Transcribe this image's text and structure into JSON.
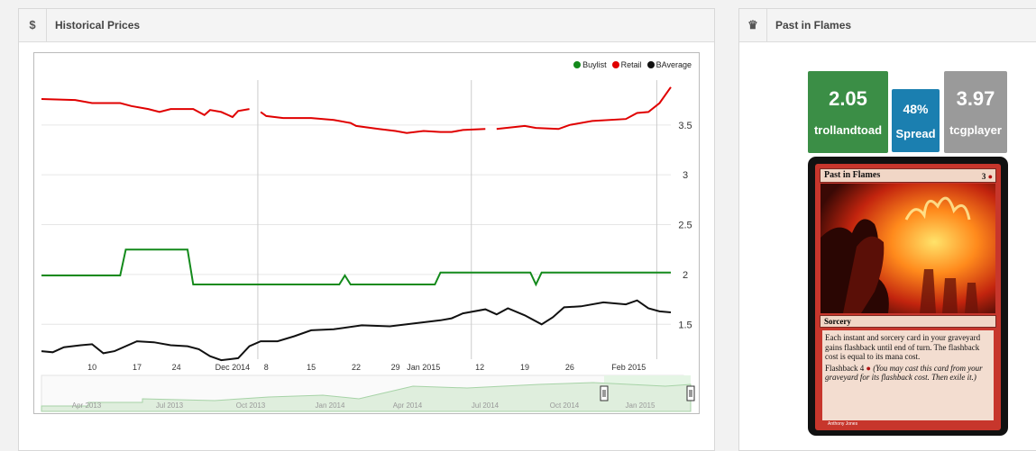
{
  "left_panel": {
    "icon": "$",
    "title": "Historical Prices"
  },
  "right_panel": {
    "icon": "♛",
    "title": "Past in Flames"
  },
  "legend": [
    {
      "label": "Buylist",
      "color": "#138a1b"
    },
    {
      "label": "Retail",
      "color": "#e00000"
    },
    {
      "label": "BAverage",
      "color": "#111111"
    }
  ],
  "chart_data": {
    "type": "line",
    "y_ticks": [
      "3.5",
      "3",
      "2.5",
      "2",
      "1.5"
    ],
    "ylim": [
      1.15,
      3.95
    ],
    "x_ticks": [
      "10",
      "17",
      "24",
      "Dec 2014",
      "8",
      "15",
      "22",
      "29",
      "Jan 2015",
      "12",
      "19",
      "26",
      "Feb 2015"
    ],
    "navigator_ticks": [
      "Apr 2013",
      "Jul 2013",
      "Oct 2013",
      "Jan 2014",
      "Apr 2014",
      "Jul 2014",
      "Oct 2014",
      "Jan 2015"
    ],
    "series": [
      {
        "name": "Buylist",
        "color": "#138a1b",
        "segments": [
          [
            [
              0,
              1.99
            ],
            [
              14,
              1.99
            ],
            [
              15,
              2.25
            ],
            [
              26,
              2.25
            ],
            [
              27,
              1.9
            ],
            [
              53,
              1.9
            ],
            [
              54,
              1.99
            ],
            [
              55,
              1.9
            ],
            [
              70,
              1.9
            ],
            [
              71,
              2.02
            ],
            [
              87,
              2.02
            ],
            [
              88,
              1.9
            ],
            [
              89,
              2.02
            ],
            [
              112,
              2.02
            ]
          ]
        ]
      },
      {
        "name": "Retail",
        "color": "#e00000",
        "segments": [
          [
            [
              0,
              3.76
            ],
            [
              6,
              3.75
            ],
            [
              9,
              3.72
            ],
            [
              14,
              3.72
            ],
            [
              16,
              3.69
            ],
            [
              19,
              3.66
            ],
            [
              21,
              3.63
            ],
            [
              23,
              3.66
            ],
            [
              27,
              3.66
            ],
            [
              29,
              3.6
            ],
            [
              30,
              3.65
            ],
            [
              32,
              3.63
            ],
            [
              34,
              3.58
            ],
            [
              35,
              3.64
            ],
            [
              37,
              3.66
            ]
          ],
          [
            [
              39,
              3.63
            ],
            [
              40,
              3.59
            ],
            [
              43,
              3.57
            ],
            [
              48,
              3.57
            ],
            [
              52,
              3.55
            ],
            [
              55,
              3.52
            ],
            [
              56,
              3.49
            ],
            [
              60,
              3.46
            ],
            [
              63,
              3.44
            ],
            [
              65,
              3.42
            ],
            [
              68,
              3.44
            ],
            [
              71,
              3.43
            ],
            [
              73,
              3.43
            ],
            [
              75,
              3.45
            ],
            [
              79,
              3.46
            ]
          ],
          [
            [
              81,
              3.46
            ],
            [
              86,
              3.49
            ],
            [
              88,
              3.47
            ],
            [
              92,
              3.46
            ],
            [
              94,
              3.5
            ],
            [
              98,
              3.54
            ],
            [
              104,
              3.56
            ],
            [
              106,
              3.62
            ],
            [
              108,
              3.63
            ],
            [
              110,
              3.72
            ],
            [
              112,
              3.88
            ]
          ]
        ]
      },
      {
        "name": "BAverage",
        "color": "#111111",
        "segments": [
          [
            [
              0,
              1.23
            ],
            [
              2,
              1.22
            ],
            [
              4,
              1.27
            ],
            [
              7,
              1.29
            ],
            [
              9,
              1.3
            ],
            [
              11,
              1.21
            ],
            [
              13,
              1.23
            ],
            [
              17,
              1.33
            ],
            [
              20,
              1.32
            ],
            [
              23,
              1.29
            ],
            [
              26,
              1.28
            ],
            [
              28,
              1.25
            ],
            [
              30,
              1.18
            ],
            [
              32,
              1.14
            ],
            [
              35,
              1.16
            ],
            [
              37,
              1.28
            ],
            [
              39,
              1.33
            ],
            [
              42,
              1.33
            ],
            [
              45,
              1.38
            ],
            [
              48,
              1.44
            ],
            [
              52,
              1.45
            ],
            [
              57,
              1.49
            ],
            [
              62,
              1.48
            ],
            [
              68,
              1.52
            ],
            [
              71,
              1.54
            ],
            [
              73,
              1.56
            ],
            [
              75,
              1.61
            ],
            [
              79,
              1.65
            ],
            [
              81,
              1.6
            ],
            [
              83,
              1.66
            ],
            [
              86,
              1.59
            ],
            [
              89,
              1.5
            ],
            [
              91,
              1.57
            ],
            [
              93,
              1.67
            ],
            [
              96,
              1.68
            ],
            [
              100,
              1.72
            ],
            [
              104,
              1.7
            ],
            [
              106,
              1.74
            ],
            [
              108,
              1.66
            ],
            [
              110,
              1.63
            ],
            [
              112,
              1.62
            ]
          ]
        ]
      }
    ]
  },
  "stats": {
    "buy_price": "2.05",
    "buy_vendor": "trollandtoad",
    "spread_pct": "48%",
    "spread_label": "Spread",
    "sell_price": "3.97",
    "sell_vendor": "tcgplayer"
  },
  "card": {
    "name": "Past in Flames",
    "mana": "3",
    "type_line": "Sorcery",
    "rules": "Each instant and sorcery card in your graveyard gains flashback until end of turn. The flashback cost is equal to its mana cost.",
    "flashback": "Flashback 4",
    "flashback_reminder": "(You may cast this card from your graveyard for its flashback cost. Then exile it.)",
    "artist": "Anthony Jones"
  }
}
